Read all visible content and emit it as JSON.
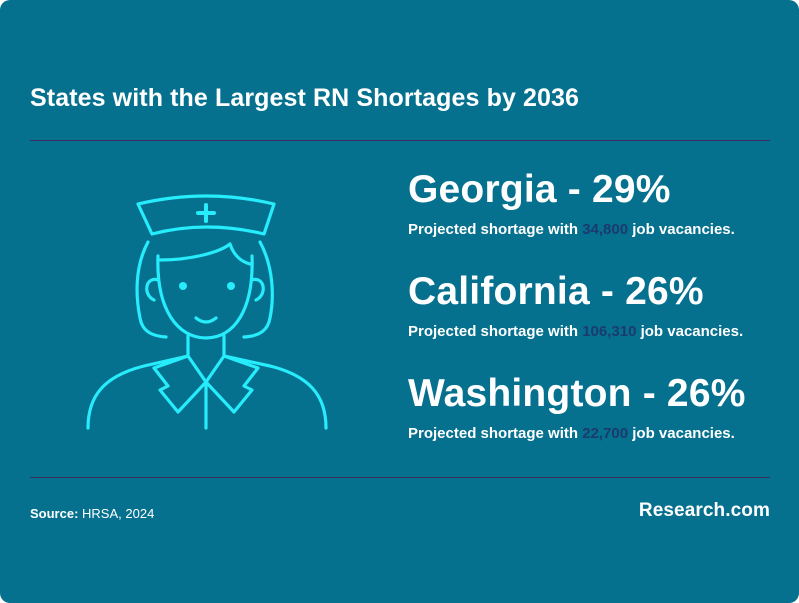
{
  "title": "States with the Largest RN Shortages by 2036",
  "colors": {
    "background": "#05718f",
    "icon_stroke": "#26ecfb",
    "highlight": "#1b3a6e",
    "divider": "#3d2d5c"
  },
  "illustration": {
    "icon": "nurse-icon"
  },
  "stats": [
    {
      "heading": "Georgia - 29%",
      "sub_prefix": "Projected shortage with ",
      "vacancies": "34,800",
      "sub_suffix": " job vacancies."
    },
    {
      "heading": "California - 26%",
      "sub_prefix": "Projected shortage with ",
      "vacancies": "106,310",
      "sub_suffix": " job vacancies."
    },
    {
      "heading": "Washington - 26%",
      "sub_prefix": "Projected shortage with ",
      "vacancies": "22,700",
      "sub_suffix": " job vacancies."
    }
  ],
  "footer": {
    "source_label": "Source:",
    "source_value": "HRSA, 2024",
    "brand": "Research.com"
  }
}
